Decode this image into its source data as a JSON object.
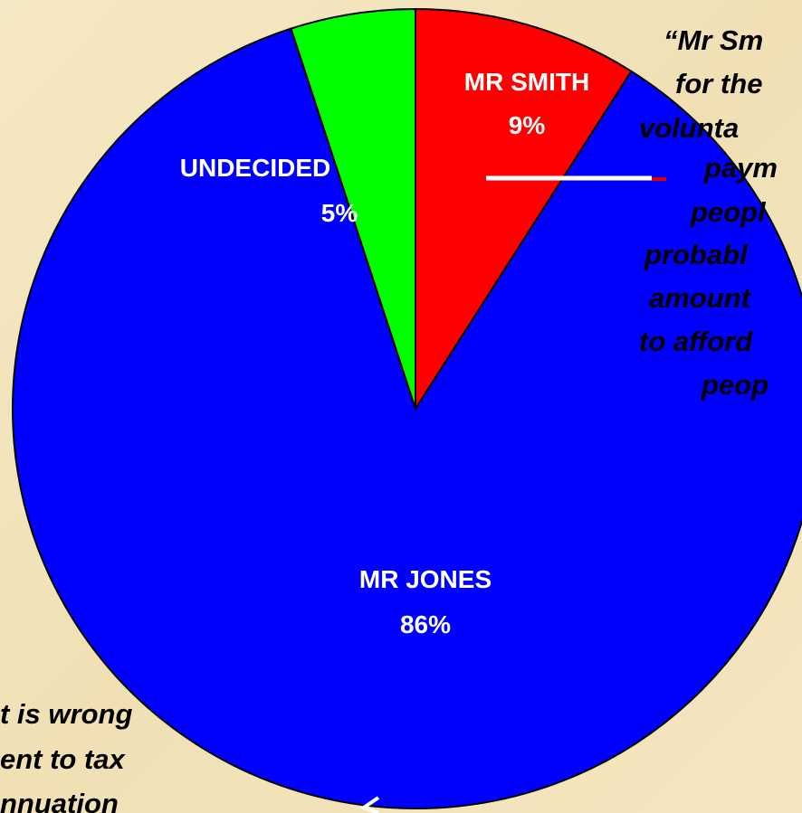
{
  "chart_data": {
    "type": "pie",
    "categories": [
      "MR SMITH",
      "MR JONES",
      "UNDECIDED"
    ],
    "values": [
      9,
      86,
      5
    ],
    "value_labels": [
      "9%",
      "86%",
      "5%"
    ],
    "colors": [
      "#ff0000",
      "#0000ff",
      "#00ff00"
    ],
    "annotations": [
      [
        "“Mr Sm",
        "for the",
        "volunta",
        "paym",
        "peopl",
        "probabl",
        "amount",
        "to afford",
        "peop"
      ],
      [
        "t is wrong",
        "ent to tax",
        "nnuation"
      ]
    ]
  }
}
